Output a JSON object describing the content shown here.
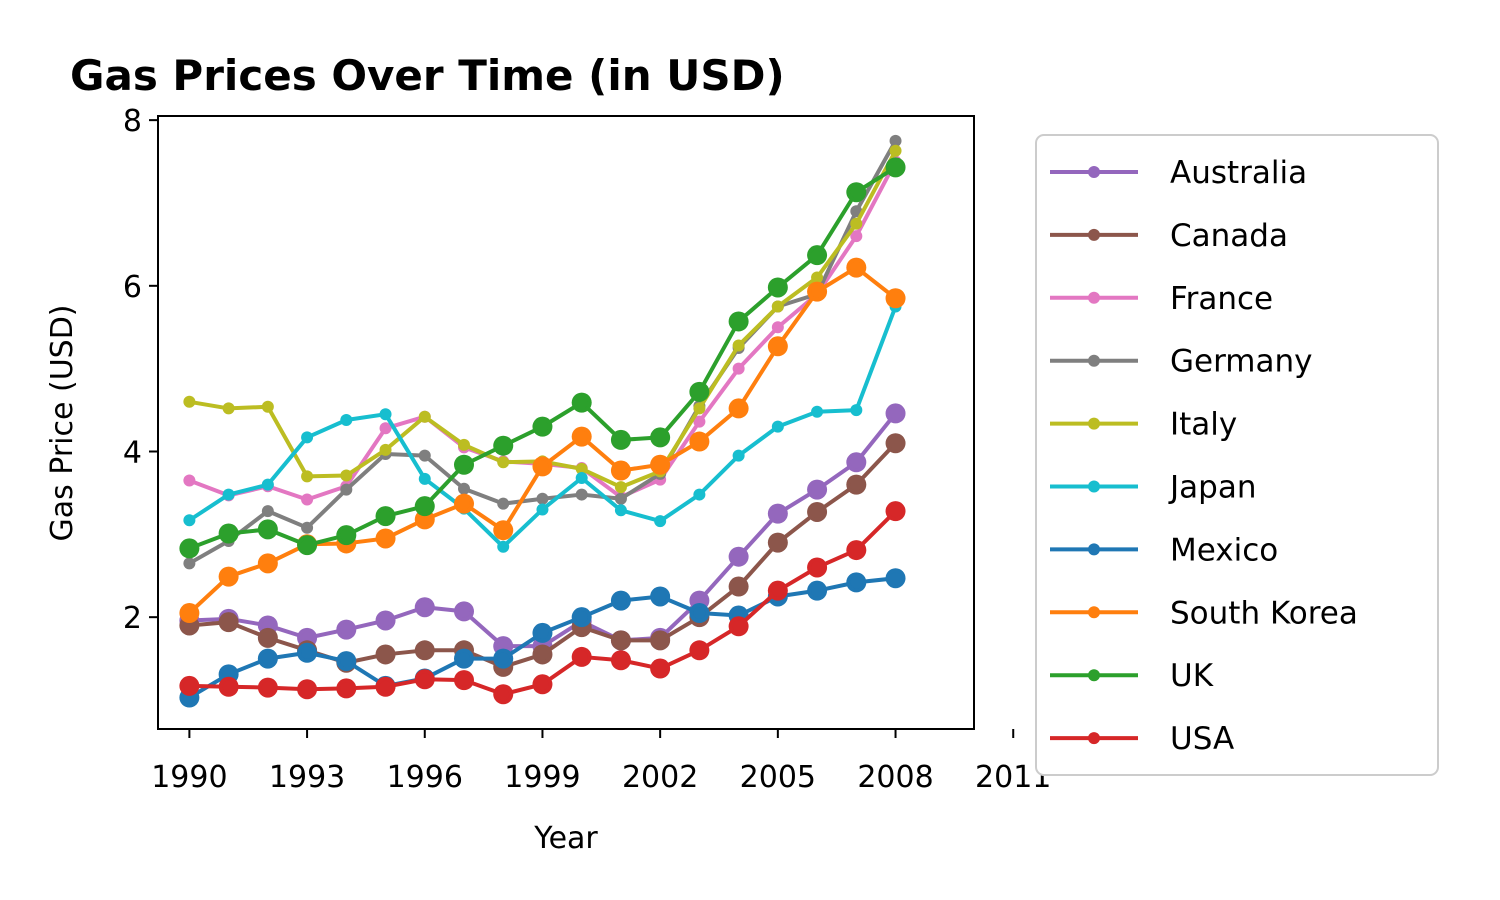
{
  "chart_data": {
    "type": "line",
    "title": "Gas Prices Over Time (in USD)",
    "xlabel": "Year",
    "ylabel": "Gas Price (USD)",
    "xlim": [
      1989.2,
      2010
    ],
    "ylim": [
      0.65,
      8.05
    ],
    "xticks": [
      1990,
      1993,
      1996,
      1999,
      2002,
      2005,
      2008,
      2011
    ],
    "yticks": [
      2,
      4,
      6,
      8
    ],
    "grid": false,
    "legend_position": "outside-right",
    "x": [
      1990,
      1991,
      1992,
      1993,
      1994,
      1995,
      1996,
      1997,
      1998,
      1999,
      2000,
      2001,
      2002,
      2003,
      2004,
      2005,
      2006,
      2007,
      2008
    ],
    "highlighted_series": [
      "Australia",
      "Canada",
      "Mexico",
      "South Korea",
      "UK",
      "USA"
    ],
    "series": [
      {
        "name": "Australia",
        "color": "#9467bd",
        "values": [
          1.96,
          1.98,
          1.9,
          1.75,
          1.85,
          1.96,
          2.12,
          2.07,
          1.65,
          1.65,
          1.95,
          1.72,
          1.75,
          2.2,
          2.73,
          3.25,
          3.54,
          3.87,
          4.46
        ]
      },
      {
        "name": "Canada",
        "color": "#8c564b",
        "values": [
          1.9,
          1.94,
          1.75,
          1.6,
          1.45,
          1.55,
          1.6,
          1.6,
          1.4,
          1.55,
          1.88,
          1.72,
          1.72,
          2.0,
          2.37,
          2.9,
          3.27,
          3.6,
          4.1
        ]
      },
      {
        "name": "France",
        "color": "#e377c2",
        "values": [
          3.65,
          3.47,
          3.58,
          3.42,
          3.58,
          4.28,
          4.42,
          4.05,
          3.88,
          3.85,
          3.8,
          3.45,
          3.66,
          4.36,
          5.0,
          5.5,
          5.9,
          6.6,
          7.5
        ]
      },
      {
        "name": "Germany",
        "color": "#7f7f7f",
        "values": [
          2.65,
          2.92,
          3.28,
          3.08,
          3.54,
          3.97,
          3.95,
          3.55,
          3.37,
          3.43,
          3.48,
          3.43,
          3.73,
          4.55,
          5.25,
          5.75,
          5.9,
          6.9,
          7.75
        ]
      },
      {
        "name": "Italy",
        "color": "#bcbd22",
        "values": [
          4.6,
          4.52,
          4.54,
          3.7,
          3.71,
          4.02,
          4.42,
          4.08,
          3.87,
          3.88,
          3.79,
          3.57,
          3.76,
          4.52,
          5.28,
          5.75,
          6.1,
          6.75,
          7.63
        ]
      },
      {
        "name": "Japan",
        "color": "#17becf",
        "values": [
          3.17,
          3.48,
          3.6,
          4.17,
          4.38,
          4.45,
          3.67,
          3.31,
          2.85,
          3.3,
          3.68,
          3.29,
          3.16,
          3.48,
          3.95,
          4.3,
          4.48,
          4.5,
          5.75
        ]
      },
      {
        "name": "Mexico",
        "color": "#1f77b4",
        "values": [
          1.03,
          1.31,
          1.5,
          1.57,
          1.47,
          1.17,
          1.26,
          1.5,
          1.5,
          1.81,
          2.0,
          2.2,
          2.25,
          2.05,
          2.02,
          2.25,
          2.32,
          2.42,
          2.47
        ]
      },
      {
        "name": "South Korea",
        "color": "#ff7f0e",
        "values": [
          2.05,
          2.49,
          2.65,
          2.88,
          2.89,
          2.95,
          3.18,
          3.37,
          3.05,
          3.82,
          4.18,
          3.77,
          3.84,
          4.12,
          4.52,
          5.27,
          5.93,
          6.22,
          5.85
        ]
      },
      {
        "name": "UK",
        "color": "#2ca02c",
        "values": [
          2.83,
          3.01,
          3.06,
          2.87,
          2.99,
          3.22,
          3.34,
          3.84,
          4.07,
          4.3,
          4.59,
          4.14,
          4.17,
          4.72,
          5.57,
          5.98,
          6.37,
          7.13,
          7.43
        ]
      },
      {
        "name": "USA",
        "color": "#d62728",
        "values": [
          1.17,
          1.16,
          1.15,
          1.13,
          1.14,
          1.16,
          1.25,
          1.24,
          1.07,
          1.19,
          1.52,
          1.48,
          1.38,
          1.6,
          1.89,
          2.32,
          2.6,
          2.81,
          3.28
        ]
      }
    ]
  }
}
